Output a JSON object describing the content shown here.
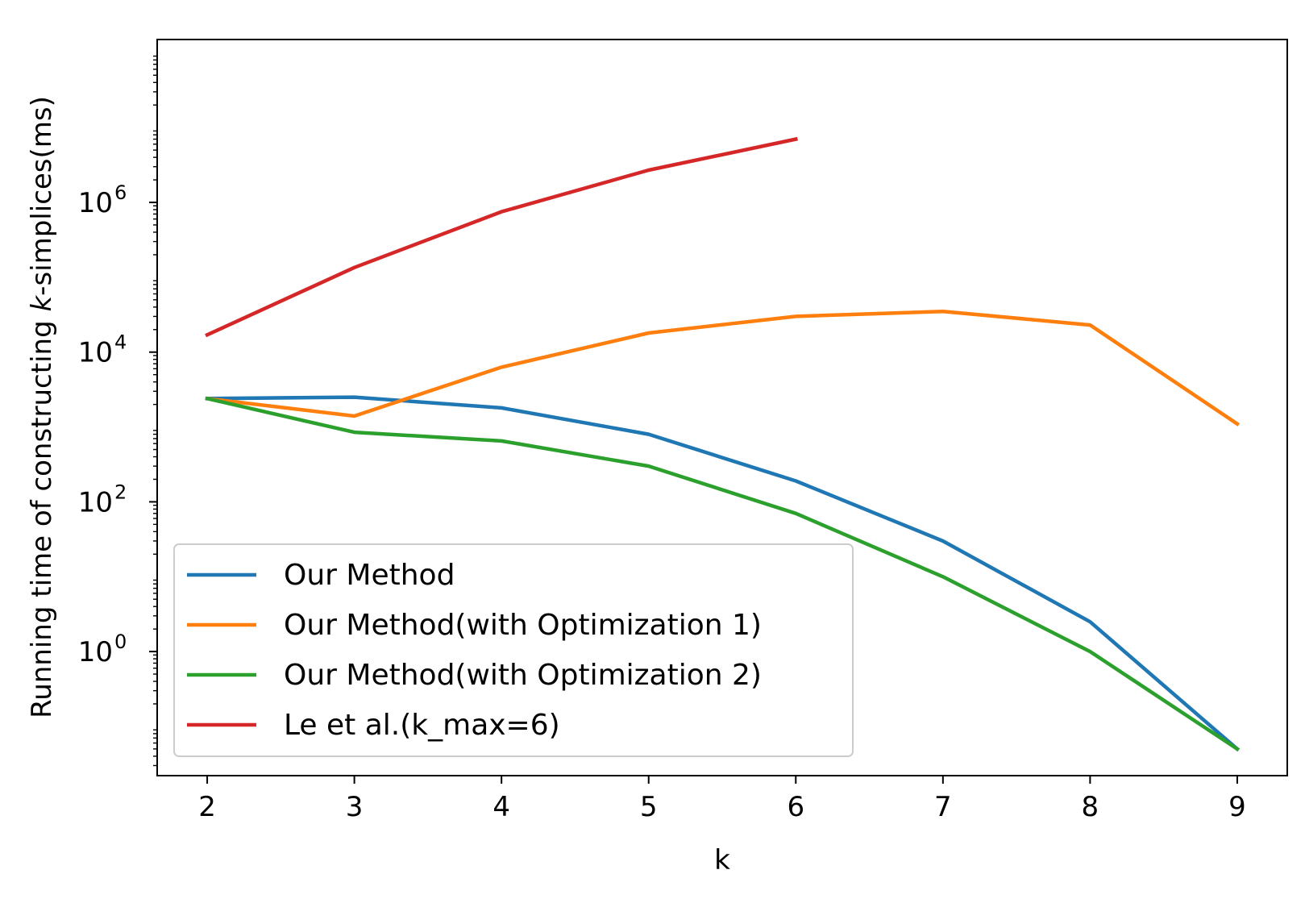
{
  "chart_data": {
    "type": "line",
    "title": "",
    "xlabel": "k",
    "ylabel": {
      "prefix": "Running time of constructing ",
      "italic": "k",
      "suffix": "-simplices(ms)"
    },
    "y_scale": "log10",
    "x": [
      2,
      3,
      4,
      5,
      6,
      7,
      8,
      9
    ],
    "x_ticks": [
      "2",
      "3",
      "4",
      "5",
      "6",
      "7",
      "8",
      "9"
    ],
    "xlim": [
      1.66,
      9.34
    ],
    "ylim": [
      0.022,
      150000000
    ],
    "y_ticks": [
      {
        "base": "10",
        "exp": "0",
        "value": 1
      },
      {
        "base": "10",
        "exp": "2",
        "value": 100
      },
      {
        "base": "10",
        "exp": "4",
        "value": 10000
      },
      {
        "base": "10",
        "exp": "6",
        "value": 1000000
      }
    ],
    "grid": false,
    "legend_position": "lower-left",
    "series": [
      {
        "name": "Our Method",
        "color": "#1f77b4",
        "values": [
          2400,
          2500,
          1800,
          800,
          190,
          30,
          2.5,
          0.05
        ]
      },
      {
        "name": "Our Method(with Optimization 1)",
        "color": "#ff7f0e",
        "values": [
          2400,
          1400,
          6300,
          18000,
          30000,
          35000,
          23000,
          1100
        ]
      },
      {
        "name": "Our Method(with Optimization 2)",
        "color": "#2ca02c",
        "values": [
          2400,
          850,
          650,
          300,
          70,
          10,
          1.0,
          0.05
        ]
      },
      {
        "name": "Le et al.(k_max=6)",
        "color": "#d62728",
        "values": [
          17000,
          135000,
          750000,
          2700000,
          7000000,
          null,
          null,
          null
        ]
      }
    ]
  }
}
